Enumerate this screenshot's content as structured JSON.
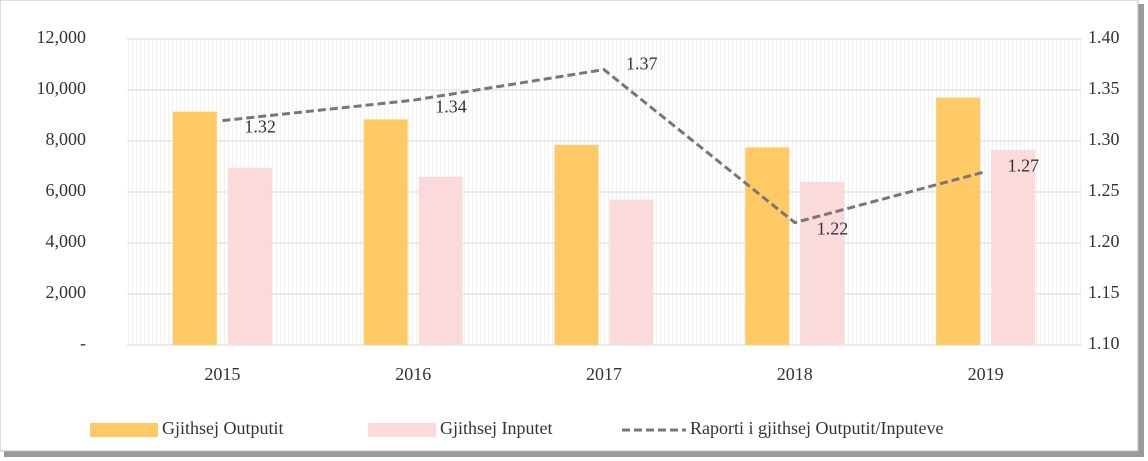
{
  "chart_data": {
    "type": "bar",
    "categories": [
      "2015",
      "2016",
      "2017",
      "2018",
      "2019"
    ],
    "series": [
      {
        "name": "Gjithsej Outputit",
        "color": "#ffc966",
        "values": [
          9150,
          8850,
          7850,
          7750,
          9700
        ]
      },
      {
        "name": "Gjithsej Inputet",
        "color": "#fadadb",
        "values": [
          6950,
          6600,
          5700,
          6400,
          7650
        ]
      },
      {
        "name": "Raporti i gjithsej Outputit/Inputeve",
        "type": "line",
        "axis": "y2",
        "color": "#777777",
        "values": [
          1.32,
          1.34,
          1.37,
          1.22,
          1.27
        ]
      }
    ],
    "ylim": [
      0,
      12000
    ],
    "yticks": [
      {
        "value": 0,
        "label": "-"
      },
      {
        "value": 2000,
        "label": "2,000"
      },
      {
        "value": 4000,
        "label": "4,000"
      },
      {
        "value": 6000,
        "label": "6,000"
      },
      {
        "value": 8000,
        "label": "8,000"
      },
      {
        "value": 10000,
        "label": "10,000"
      },
      {
        "value": 12000,
        "label": "12,000"
      }
    ],
    "y2lim": [
      1.1,
      1.4
    ],
    "y2ticks": [
      {
        "value": 1.1,
        "label": "1.10"
      },
      1.15,
      {
        "value": 1.2,
        "label": "1.20"
      },
      1.25,
      {
        "value": 1.3,
        "label": "1.30"
      },
      1.35,
      {
        "value": 1.4,
        "label": "1.40"
      }
    ],
    "grid": true,
    "legend": "bottom"
  }
}
